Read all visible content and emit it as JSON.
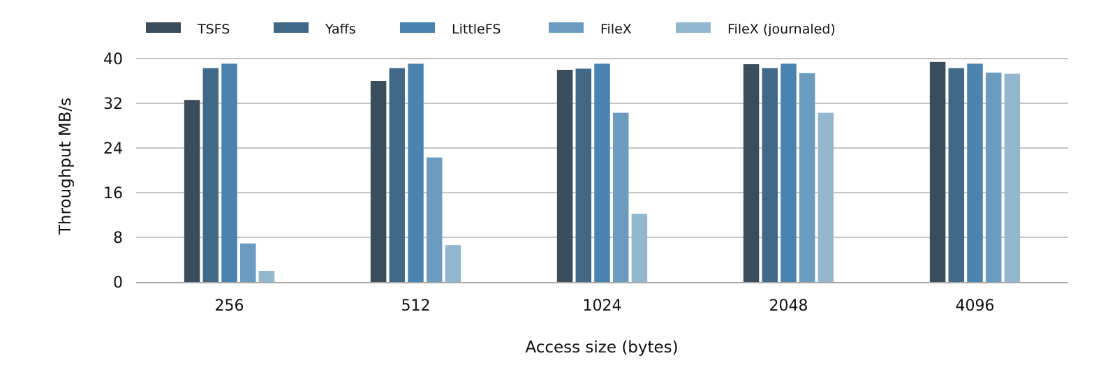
{
  "chart_data": {
    "type": "bar",
    "title": "",
    "xlabel": "Access size (bytes)",
    "ylabel": "Throughput MB/s",
    "categories": [
      "256",
      "512",
      "1024",
      "2048",
      "4096"
    ],
    "ylim": [
      0,
      40
    ],
    "yticks": [
      0,
      8,
      16,
      24,
      32,
      40
    ],
    "grid": "horizontal",
    "legend_position": "top",
    "series": [
      {
        "name": "TSFS",
        "color": "#3a4d5c",
        "values": [
          32.6,
          36.0,
          38.0,
          39.0,
          39.4
        ]
      },
      {
        "name": "Yaffs",
        "color": "#416886",
        "values": [
          38.3,
          38.3,
          38.2,
          38.3,
          38.3
        ]
      },
      {
        "name": "LittleFS",
        "color": "#4a82b0",
        "values": [
          39.1,
          39.1,
          39.1,
          39.1,
          39.1
        ]
      },
      {
        "name": "FileX",
        "color": "#6b9cc0",
        "values": [
          6.9,
          22.3,
          30.3,
          37.4,
          37.5
        ]
      },
      {
        "name": "FileX (journaled)",
        "color": "#93b7cf",
        "values": [
          2.0,
          6.6,
          12.2,
          30.3,
          37.3
        ]
      }
    ]
  }
}
